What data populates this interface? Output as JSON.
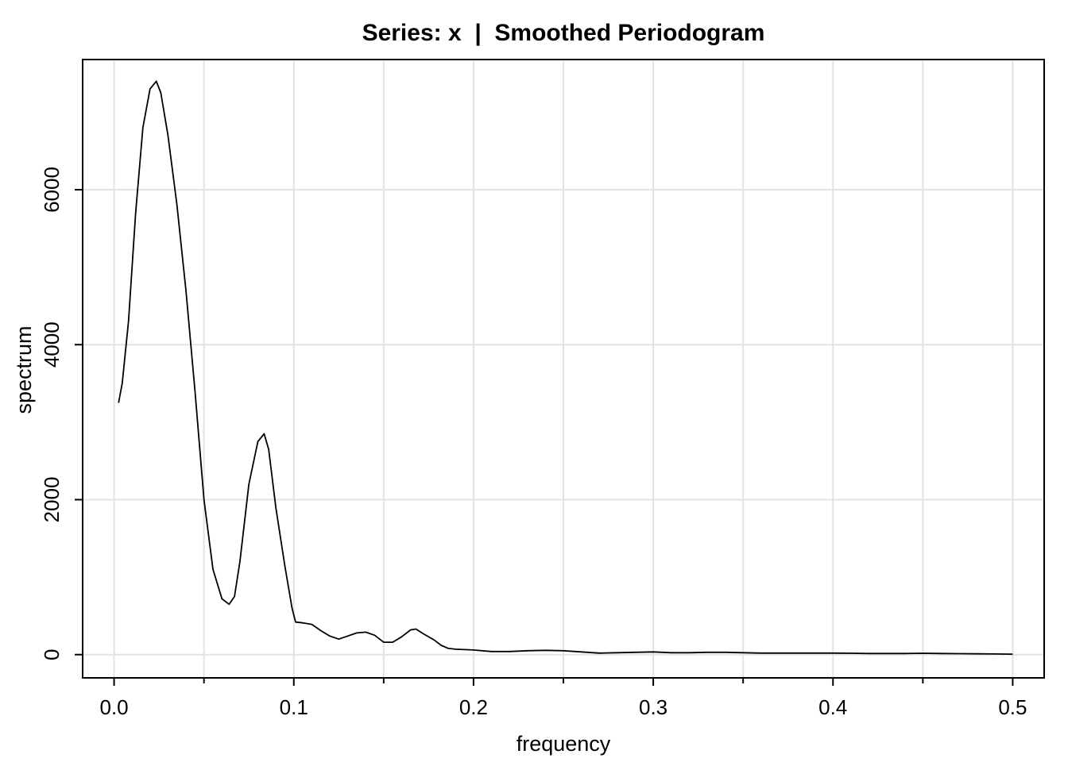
{
  "chart_data": {
    "type": "line",
    "title": "Series: x  |  Smoothed Periodogram",
    "xlabel": "frequency",
    "ylabel": "spectrum",
    "xlim": [
      -0.0175,
      0.5175
    ],
    "ylim": [
      -300,
      7680
    ],
    "x_ticks": [
      0.0,
      0.1,
      0.2,
      0.3,
      0.4,
      0.5
    ],
    "x_tick_labels": [
      "0.0",
      "0.1",
      "0.2",
      "0.3",
      "0.4",
      "0.5"
    ],
    "x_minor_ticks": [
      0.05,
      0.15,
      0.25,
      0.35,
      0.45
    ],
    "y_ticks": [
      0,
      2000,
      4000,
      6000
    ],
    "y_tick_labels": [
      "0",
      "2000",
      "4000",
      "6000"
    ],
    "x_grid": [
      0.0,
      0.05,
      0.1,
      0.15,
      0.2,
      0.25,
      0.3,
      0.35,
      0.4,
      0.45,
      0.5
    ],
    "y_grid": [
      0,
      2000,
      4000,
      6000
    ],
    "grid": true,
    "legend": "none",
    "series": [
      {
        "color": "#000000",
        "x": [
          0.0025,
          0.0045,
          0.008,
          0.012,
          0.016,
          0.02,
          0.0235,
          0.026,
          0.03,
          0.035,
          0.04,
          0.045,
          0.05,
          0.055,
          0.06,
          0.064,
          0.067,
          0.07,
          0.075,
          0.08,
          0.0835,
          0.086,
          0.09,
          0.095,
          0.099,
          0.101,
          0.105,
          0.11,
          0.115,
          0.12,
          0.125,
          0.13,
          0.135,
          0.14,
          0.145,
          0.15,
          0.155,
          0.16,
          0.165,
          0.168,
          0.172,
          0.178,
          0.182,
          0.186,
          0.19,
          0.2,
          0.21,
          0.22,
          0.23,
          0.24,
          0.25,
          0.26,
          0.27,
          0.28,
          0.29,
          0.3,
          0.31,
          0.32,
          0.33,
          0.34,
          0.35,
          0.36,
          0.37,
          0.38,
          0.39,
          0.4,
          0.41,
          0.42,
          0.43,
          0.44,
          0.45,
          0.46,
          0.47,
          0.48,
          0.49,
          0.5
        ],
        "y": [
          3250,
          3500,
          4300,
          5700,
          6800,
          7300,
          7400,
          7250,
          6700,
          5800,
          4700,
          3400,
          2000,
          1100,
          720,
          650,
          750,
          1200,
          2200,
          2750,
          2850,
          2650,
          1900,
          1150,
          600,
          420,
          410,
          390,
          310,
          240,
          200,
          240,
          280,
          290,
          250,
          160,
          160,
          230,
          320,
          330,
          270,
          190,
          120,
          80,
          70,
          60,
          40,
          40,
          50,
          55,
          50,
          35,
          20,
          25,
          30,
          35,
          25,
          25,
          30,
          30,
          25,
          20,
          20,
          20,
          20,
          20,
          18,
          15,
          15,
          15,
          18,
          14,
          12,
          10,
          8,
          5
        ]
      }
    ]
  }
}
